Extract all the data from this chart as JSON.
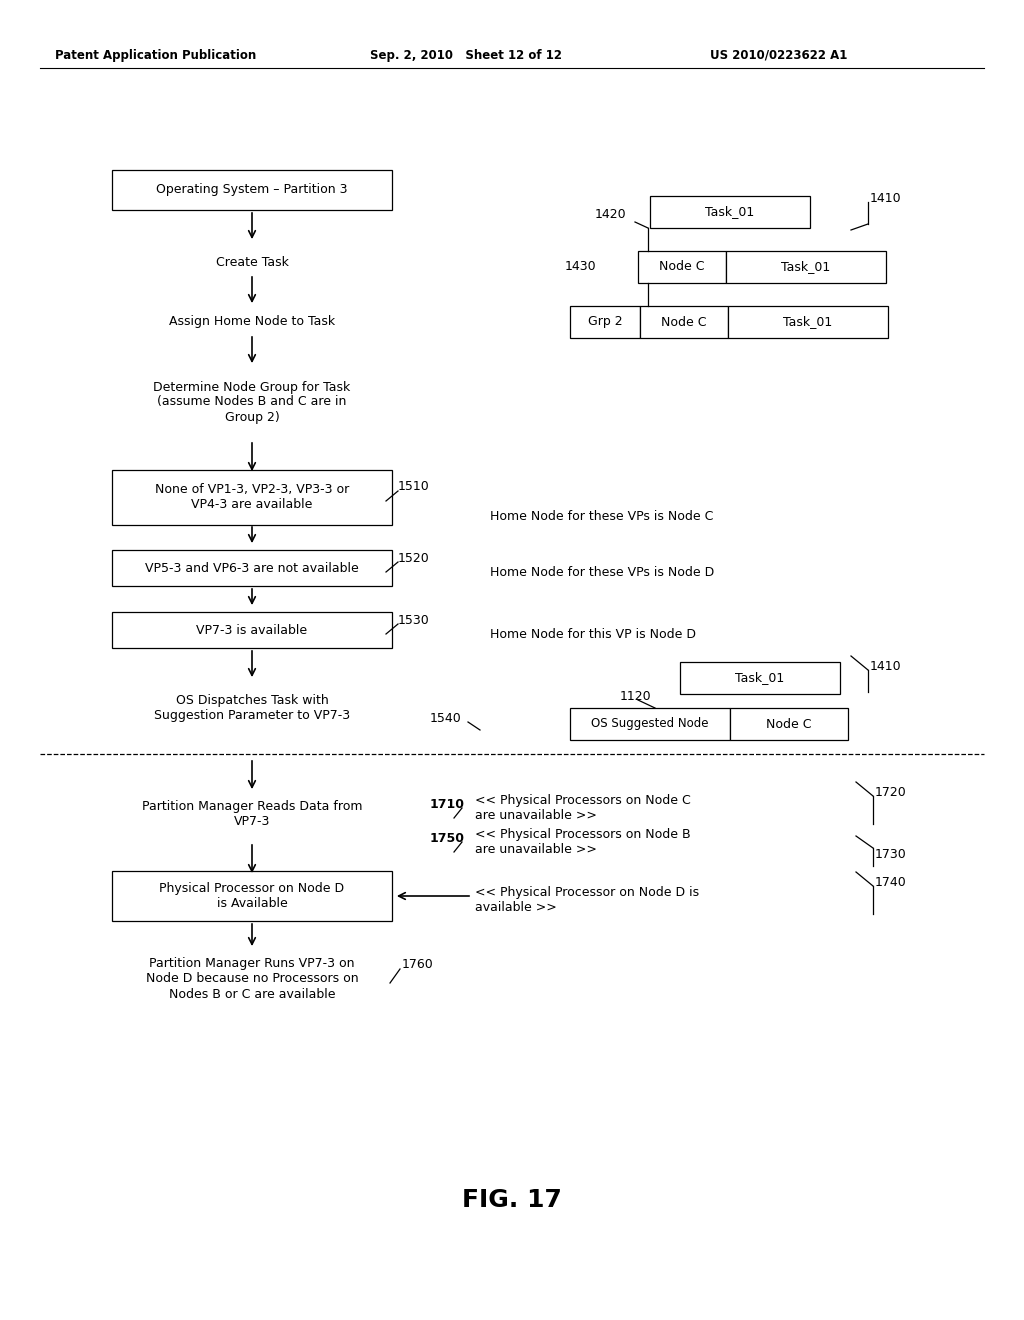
{
  "header_left": "Patent Application Publication",
  "header_mid": "Sep. 2, 2010   Sheet 12 of 12",
  "header_right": "US 2010/0223622 A1",
  "fig_label": "FIG. 17",
  "bg_color": "#ffffff",
  "text_color": "#000000"
}
